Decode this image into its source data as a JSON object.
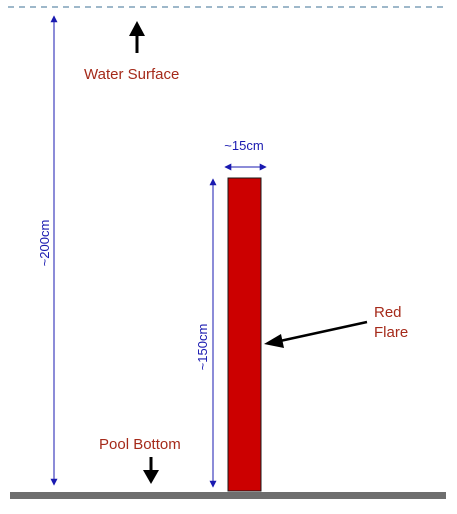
{
  "labels": {
    "water_surface": "Water Surface",
    "pool_bottom": "Pool Bottom",
    "flare_line1": "Red",
    "flare_line2": "Flare",
    "depth": "~200cm",
    "flare_height": "~150cm",
    "flare_width": "~15cm"
  },
  "colors": {
    "water_line": "#7fa0b8",
    "pool_floor": "#6e6e6e",
    "flare_fill": "#cc0000",
    "flare_stroke": "#1a1a1a",
    "label_text": "#a52a1a",
    "dimension": "#1a1ab0",
    "arrow": "#000000"
  }
}
